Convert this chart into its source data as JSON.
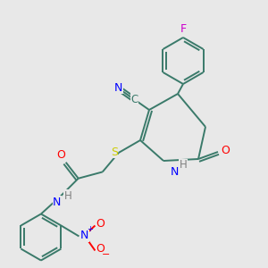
{
  "bg_color": "#e8e8e8",
  "figsize": [
    3.0,
    3.0
  ],
  "dpi": 100,
  "colors": {
    "C": "#3a7a6a",
    "N": "#0000ff",
    "O": "#ff0000",
    "S": "#cccc00",
    "F": "#cc00cc",
    "H_label": "#808080",
    "bond": "#3a7a6a"
  },
  "lw": 1.4
}
